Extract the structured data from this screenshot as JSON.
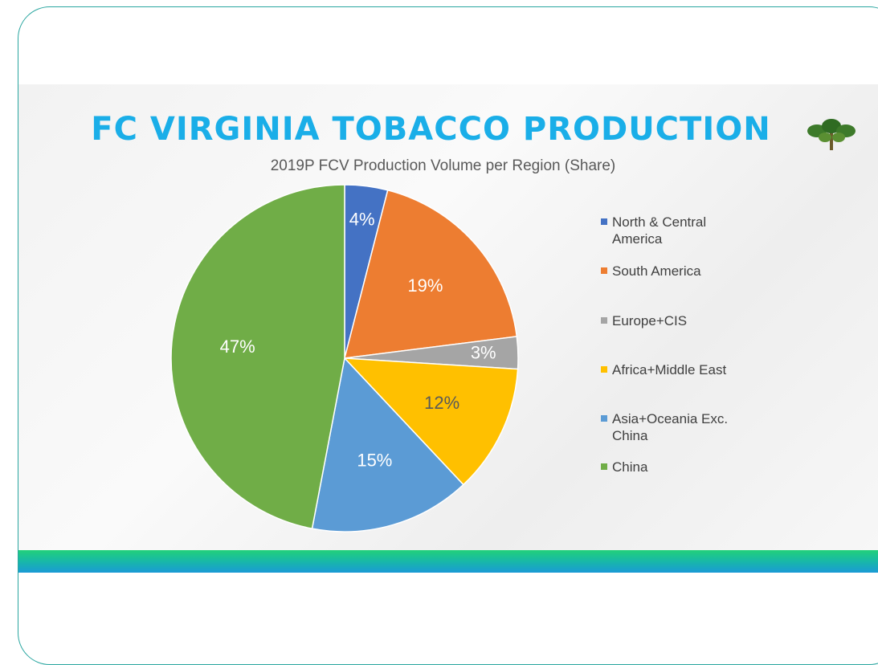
{
  "chart_data": {
    "type": "pie",
    "title": "FC VIRGINIA TOBACCO PRODUCTION",
    "subtitle": "2019P FCV Production Volume per Region (Share)",
    "categories": [
      "North & Central America",
      "South America",
      "Europe+CIS",
      "Africa+Middle East",
      "Asia+Oceania Exc. China",
      "China"
    ],
    "values": [
      4,
      19,
      3,
      12,
      15,
      47
    ],
    "value_labels": [
      "4%",
      "19%",
      "3%",
      "12%",
      "15%",
      "47%"
    ],
    "colors": [
      "#4472c4",
      "#ed7d31",
      "#a5a5a5",
      "#ffc000",
      "#5b9bd5",
      "#70ad47"
    ],
    "legend": "right"
  }
}
